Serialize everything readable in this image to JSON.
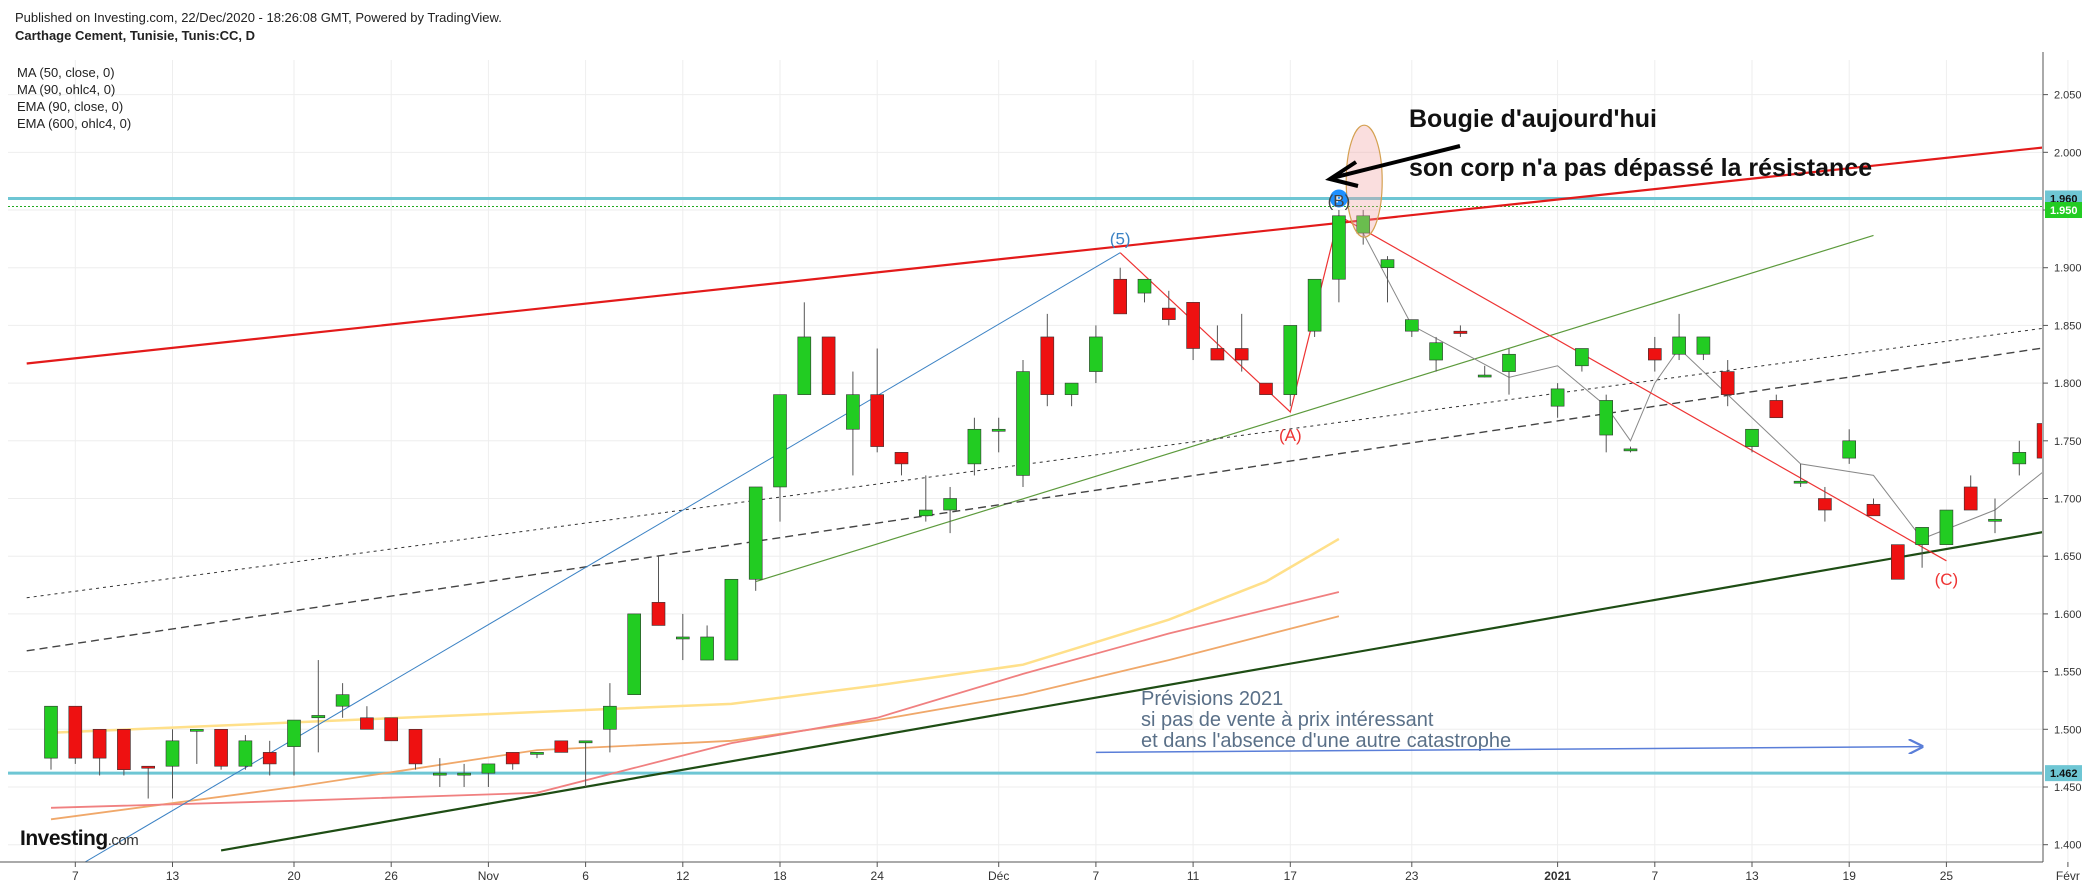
{
  "header": {
    "published": "Published on Investing.com, 22/Dec/2020 - 18:26:08 GMT, Powered by TradingView.",
    "instrument": "Carthage Cement, Tunisie, Tunis:CC, D"
  },
  "indicators": [
    "MA (50, close, 0)",
    "MA (90, ohlc4, 0)",
    "EMA (90, close, 0)",
    "EMA (600, ohlc4, 0)"
  ],
  "branding": {
    "main": "Investing",
    "suffix": ".com"
  },
  "annotations": {
    "callout_line1": "Bougie d'aujourd'hui",
    "callout_line2": "son corp n'a pas dépassé la résistance",
    "forecast_line1": "Prévisions 2021",
    "forecast_line2": "si pas de vente à prix intéressant",
    "forecast_line3": "et dans l'absence d'une autre catastrophe",
    "wave_5": "(5)",
    "wave_A": "(A)",
    "wave_B": "(B)",
    "wave_C": "(C)",
    "marker_P": "P"
  },
  "colors": {
    "up": "#22cc22",
    "down": "#ee1111",
    "resistance": "#6ec6d4",
    "trend_red": "#e31a1a",
    "trend_dark_green": "#1e4d14",
    "trend_green": "#5c9a3c",
    "wave_blue": "#3b82c4",
    "wave_red": "#e33",
    "ma50": "#ffe08a",
    "ma90": "#f0a86a",
    "ema90": "#f08080",
    "text_blue": "#5a7088",
    "arrow_blue": "#5a7ed8"
  },
  "chart_data": {
    "type": "candlestick",
    "ylim": [
      1.385,
      2.08
    ],
    "y_ticks": [
      "1.400",
      "1.450",
      "1.500",
      "1.550",
      "1.600",
      "1.650",
      "1.700",
      "1.750",
      "1.800",
      "1.850",
      "1.900",
      "1.950",
      "2.000",
      "2.050"
    ],
    "x_ticks": [
      {
        "label": "7",
        "i": 1
      },
      {
        "label": "13",
        "i": 5
      },
      {
        "label": "20",
        "i": 10
      },
      {
        "label": "26",
        "i": 14
      },
      {
        "label": "Nov",
        "i": 18
      },
      {
        "label": "6",
        "i": 22
      },
      {
        "label": "12",
        "i": 26
      },
      {
        "label": "18",
        "i": 30
      },
      {
        "label": "24",
        "i": 34
      },
      {
        "label": "Déc",
        "i": 39
      },
      {
        "label": "7",
        "i": 43
      },
      {
        "label": "11",
        "i": 47
      },
      {
        "label": "17",
        "i": 51
      },
      {
        "label": "23",
        "i": 56
      },
      {
        "label": "2021",
        "i": 62
      },
      {
        "label": "7",
        "i": 66
      },
      {
        "label": "13",
        "i": 70
      },
      {
        "label": "19",
        "i": 74
      },
      {
        "label": "25",
        "i": 78
      },
      {
        "label": "Févr",
        "i": 83
      }
    ],
    "price_labels": [
      {
        "value": 1.96,
        "label": "1.960",
        "color": "#6ec6d4"
      },
      {
        "value": 1.95,
        "label": "1.950",
        "color": "#22cc22"
      },
      {
        "value": 1.462,
        "label": "1.462",
        "color": "#6ec6d4"
      }
    ],
    "candles": [
      {
        "i": 0,
        "o": 1.475,
        "h": 1.52,
        "l": 1.465,
        "c": 1.52
      },
      {
        "i": 1,
        "o": 1.52,
        "h": 1.52,
        "l": 1.47,
        "c": 1.475
      },
      {
        "i": 2,
        "o": 1.5,
        "h": 1.5,
        "l": 1.46,
        "c": 1.475
      },
      {
        "i": 3,
        "o": 1.5,
        "h": 1.5,
        "l": 1.46,
        "c": 1.465
      },
      {
        "i": 4,
        "o": 1.468,
        "h": 1.468,
        "l": 1.44,
        "c": 1.467
      },
      {
        "i": 5,
        "o": 1.468,
        "h": 1.5,
        "l": 1.44,
        "c": 1.49
      },
      {
        "i": 6,
        "o": 1.5,
        "h": 1.5,
        "l": 1.47,
        "c": 1.5
      },
      {
        "i": 7,
        "o": 1.5,
        "h": 1.5,
        "l": 1.465,
        "c": 1.468
      },
      {
        "i": 8,
        "o": 1.468,
        "h": 1.495,
        "l": 1.465,
        "c": 1.49
      },
      {
        "i": 9,
        "o": 1.48,
        "h": 1.49,
        "l": 1.46,
        "c": 1.47
      },
      {
        "i": 10,
        "o": 1.485,
        "h": 1.505,
        "l": 1.46,
        "c": 1.508
      },
      {
        "i": 11,
        "o": 1.51,
        "h": 1.56,
        "l": 1.48,
        "c": 1.512
      },
      {
        "i": 12,
        "o": 1.52,
        "h": 1.54,
        "l": 1.51,
        "c": 1.53
      },
      {
        "i": 13,
        "o": 1.51,
        "h": 1.52,
        "l": 1.5,
        "c": 1.5
      },
      {
        "i": 14,
        "o": 1.51,
        "h": 1.51,
        "l": 1.49,
        "c": 1.49
      },
      {
        "i": 15,
        "o": 1.5,
        "h": 1.5,
        "l": 1.465,
        "c": 1.47
      },
      {
        "i": 16,
        "o": 1.462,
        "h": 1.475,
        "l": 1.45,
        "c": 1.462
      },
      {
        "i": 17,
        "o": 1.462,
        "h": 1.47,
        "l": 1.45,
        "c": 1.462
      },
      {
        "i": 18,
        "o": 1.462,
        "h": 1.47,
        "l": 1.45,
        "c": 1.47
      },
      {
        "i": 19,
        "o": 1.48,
        "h": 1.48,
        "l": 1.465,
        "c": 1.47
      },
      {
        "i": 20,
        "o": 1.48,
        "h": 1.48,
        "l": 1.475,
        "c": 1.48
      },
      {
        "i": 21,
        "o": 1.49,
        "h": 1.49,
        "l": 1.48,
        "c": 1.48
      },
      {
        "i": 22,
        "o": 1.49,
        "h": 1.49,
        "l": 1.45,
        "c": 1.49
      },
      {
        "i": 23,
        "o": 1.5,
        "h": 1.54,
        "l": 1.48,
        "c": 1.52
      },
      {
        "i": 24,
        "o": 1.53,
        "h": 1.6,
        "l": 1.53,
        "c": 1.6
      },
      {
        "i": 25,
        "o": 1.61,
        "h": 1.65,
        "l": 1.59,
        "c": 1.59
      },
      {
        "i": 26,
        "o": 1.58,
        "h": 1.6,
        "l": 1.56,
        "c": 1.58
      },
      {
        "i": 27,
        "o": 1.56,
        "h": 1.59,
        "l": 1.56,
        "c": 1.58
      },
      {
        "i": 28,
        "o": 1.56,
        "h": 1.63,
        "l": 1.56,
        "c": 1.63
      },
      {
        "i": 29,
        "o": 1.63,
        "h": 1.71,
        "l": 1.62,
        "c": 1.71
      },
      {
        "i": 30,
        "o": 1.71,
        "h": 1.79,
        "l": 1.68,
        "c": 1.79
      },
      {
        "i": 31,
        "o": 1.79,
        "h": 1.87,
        "l": 1.79,
        "c": 1.84
      },
      {
        "i": 32,
        "o": 1.84,
        "h": 1.84,
        "l": 1.79,
        "c": 1.79
      },
      {
        "i": 33,
        "o": 1.76,
        "h": 1.81,
        "l": 1.72,
        "c": 1.79
      },
      {
        "i": 34,
        "o": 1.79,
        "h": 1.83,
        "l": 1.74,
        "c": 1.745
      },
      {
        "i": 35,
        "o": 1.74,
        "h": 1.74,
        "l": 1.72,
        "c": 1.73
      },
      {
        "i": 36,
        "o": 1.685,
        "h": 1.72,
        "l": 1.68,
        "c": 1.69
      },
      {
        "i": 37,
        "o": 1.69,
        "h": 1.71,
        "l": 1.67,
        "c": 1.7
      },
      {
        "i": 38,
        "o": 1.73,
        "h": 1.77,
        "l": 1.72,
        "c": 1.76
      },
      {
        "i": 39,
        "o": 1.76,
        "h": 1.77,
        "l": 1.74,
        "c": 1.76
      },
      {
        "i": 40,
        "o": 1.72,
        "h": 1.82,
        "l": 1.71,
        "c": 1.81
      },
      {
        "i": 41,
        "o": 1.84,
        "h": 1.86,
        "l": 1.78,
        "c": 1.79
      },
      {
        "i": 42,
        "o": 1.79,
        "h": 1.8,
        "l": 1.78,
        "c": 1.8
      },
      {
        "i": 43,
        "o": 1.81,
        "h": 1.85,
        "l": 1.8,
        "c": 1.84
      },
      {
        "i": 44,
        "o": 1.89,
        "h": 1.9,
        "l": 1.86,
        "c": 1.86
      },
      {
        "i": 45,
        "o": 1.878,
        "h": 1.89,
        "l": 1.87,
        "c": 1.89
      },
      {
        "i": 46,
        "o": 1.865,
        "h": 1.88,
        "l": 1.85,
        "c": 1.855
      },
      {
        "i": 47,
        "o": 1.87,
        "h": 1.87,
        "l": 1.82,
        "c": 1.83
      },
      {
        "i": 48,
        "o": 1.83,
        "h": 1.85,
        "l": 1.82,
        "c": 1.82
      },
      {
        "i": 49,
        "o": 1.83,
        "h": 1.86,
        "l": 1.81,
        "c": 1.82
      },
      {
        "i": 50,
        "o": 1.8,
        "h": 1.8,
        "l": 1.79,
        "c": 1.79
      },
      {
        "i": 51,
        "o": 1.79,
        "h": 1.85,
        "l": 1.78,
        "c": 1.85
      },
      {
        "i": 52,
        "o": 1.845,
        "h": 1.89,
        "l": 1.84,
        "c": 1.89
      },
      {
        "i": 53,
        "o": 1.89,
        "h": 1.95,
        "l": 1.87,
        "c": 1.945
      },
      {
        "i": 54,
        "o": 1.93,
        "h": 1.95,
        "l": 1.92,
        "c": 1.945
      },
      {
        "i": 55,
        "o": 1.9,
        "h": 1.91,
        "l": 1.87,
        "c": 1.907
      },
      {
        "i": 56,
        "o": 1.845,
        "h": 1.855,
        "l": 1.84,
        "c": 1.855
      },
      {
        "i": 57,
        "o": 1.82,
        "h": 1.84,
        "l": 1.81,
        "c": 1.835
      },
      {
        "i": 58,
        "o": 1.845,
        "h": 1.85,
        "l": 1.84,
        "c": 1.843
      },
      {
        "i": 59,
        "o": 1.807,
        "h": 1.815,
        "l": 1.805,
        "c": 1.807
      },
      {
        "i": 60,
        "o": 1.81,
        "h": 1.83,
        "l": 1.79,
        "c": 1.825
      },
      {
        "i": 62,
        "o": 1.78,
        "h": 1.8,
        "l": 1.77,
        "c": 1.795
      },
      {
        "i": 63,
        "o": 1.815,
        "h": 1.83,
        "l": 1.81,
        "c": 1.83
      },
      {
        "i": 64,
        "o": 1.755,
        "h": 1.79,
        "l": 1.74,
        "c": 1.785
      },
      {
        "i": 65,
        "o": 1.743,
        "h": 1.745,
        "l": 1.74,
        "c": 1.743
      },
      {
        "i": 66,
        "o": 1.83,
        "h": 1.84,
        "l": 1.81,
        "c": 1.82
      },
      {
        "i": 67,
        "o": 1.825,
        "h": 1.86,
        "l": 1.82,
        "c": 1.84
      },
      {
        "i": 68,
        "o": 1.825,
        "h": 1.84,
        "l": 1.82,
        "c": 1.84
      },
      {
        "i": 69,
        "o": 1.81,
        "h": 1.82,
        "l": 1.78,
        "c": 1.79
      },
      {
        "i": 70,
        "o": 1.745,
        "h": 1.76,
        "l": 1.74,
        "c": 1.76
      },
      {
        "i": 71,
        "o": 1.785,
        "h": 1.79,
        "l": 1.77,
        "c": 1.77
      },
      {
        "i": 72,
        "o": 1.715,
        "h": 1.73,
        "l": 1.71,
        "c": 1.715
      },
      {
        "i": 73,
        "o": 1.7,
        "h": 1.71,
        "l": 1.68,
        "c": 1.69
      },
      {
        "i": 74,
        "o": 1.735,
        "h": 1.76,
        "l": 1.73,
        "c": 1.75
      },
      {
        "i": 75,
        "o": 1.695,
        "h": 1.7,
        "l": 1.69,
        "c": 1.685
      },
      {
        "i": 76,
        "o": 1.66,
        "h": 1.66,
        "l": 1.63,
        "c": 1.63
      },
      {
        "i": 77,
        "o": 1.66,
        "h": 1.67,
        "l": 1.64,
        "c": 1.675
      },
      {
        "i": 78,
        "o": 1.66,
        "h": 1.69,
        "l": 1.66,
        "c": 1.69
      },
      {
        "i": 79,
        "o": 1.71,
        "h": 1.72,
        "l": 1.69,
        "c": 1.69
      },
      {
        "i": 80,
        "o": 1.682,
        "h": 1.7,
        "l": 1.67,
        "c": 1.682
      },
      {
        "i": 81,
        "o": 1.73,
        "h": 1.75,
        "l": 1.72,
        "c": 1.74
      },
      {
        "i": 82,
        "o": 1.765,
        "h": 1.78,
        "l": 1.735,
        "c": 1.735
      }
    ],
    "ma50": [
      [
        0,
        1.497
      ],
      [
        10,
        1.506
      ],
      [
        20,
        1.515
      ],
      [
        28,
        1.522
      ],
      [
        34,
        1.538
      ],
      [
        40,
        1.556
      ],
      [
        46,
        1.595
      ],
      [
        50,
        1.628
      ],
      [
        53,
        1.665
      ]
    ],
    "ma90": [
      [
        0,
        1.422
      ],
      [
        10,
        1.45
      ],
      [
        20,
        1.482
      ],
      [
        28,
        1.49
      ],
      [
        34,
        1.508
      ],
      [
        40,
        1.53
      ],
      [
        46,
        1.56
      ],
      [
        53,
        1.598
      ]
    ],
    "ema90": [
      [
        0,
        1.432
      ],
      [
        10,
        1.438
      ],
      [
        20,
        1.445
      ],
      [
        28,
        1.488
      ],
      [
        34,
        1.51
      ],
      [
        40,
        1.548
      ],
      [
        46,
        1.583
      ],
      [
        53,
        1.619
      ]
    ],
    "resistance_levels": [
      1.96,
      1.462
    ],
    "dotted_level": 1.953,
    "trendlines": {
      "red_resistance": [
        [
          -1,
          1.817
        ],
        [
          85,
          2.011
        ]
      ],
      "dark_green_support": [
        [
          7,
          1.395
        ],
        [
          85,
          1.682
        ]
      ],
      "green_channel": [
        [
          29,
          1.628
        ],
        [
          75,
          1.928
        ]
      ],
      "dotted_black": [
        [
          -1,
          1.614
        ],
        [
          85,
          1.856
        ]
      ],
      "dashed_black": [
        [
          -1,
          1.568
        ],
        [
          85,
          1.84
        ]
      ]
    },
    "wave_lines": {
      "blue": [
        [
          1,
          1.38
        ],
        [
          44,
          1.913
        ]
      ],
      "red": [
        [
          44,
          1.913
        ],
        [
          51,
          1.775
        ],
        [
          53,
          1.945
        ],
        [
          78,
          1.646
        ]
      ],
      "gray": [
        [
          54,
          1.93
        ],
        [
          56,
          1.85
        ],
        [
          60,
          1.805
        ],
        [
          62,
          1.815
        ],
        [
          64,
          1.78
        ],
        [
          65,
          1.75
        ],
        [
          66,
          1.8
        ],
        [
          67,
          1.83
        ],
        [
          70,
          1.77
        ],
        [
          72,
          1.73
        ],
        [
          75,
          1.72
        ],
        [
          77,
          1.665
        ],
        [
          80,
          1.69
        ],
        [
          83,
          1.74
        ]
      ]
    },
    "wave_labels": [
      {
        "key": "wave_5",
        "i": 44,
        "v": 1.92,
        "color": "#3b82c4"
      },
      {
        "key": "wave_A",
        "i": 51,
        "v": 1.75,
        "color": "#e33"
      },
      {
        "key": "wave_B",
        "i": 53,
        "v": 1.953,
        "color": "#444"
      },
      {
        "key": "wave_C",
        "i": 78,
        "v": 1.625,
        "color": "#e33"
      }
    ],
    "forecast_arrow": [
      [
        43,
        1.48
      ],
      [
        77,
        1.485
      ]
    ]
  }
}
